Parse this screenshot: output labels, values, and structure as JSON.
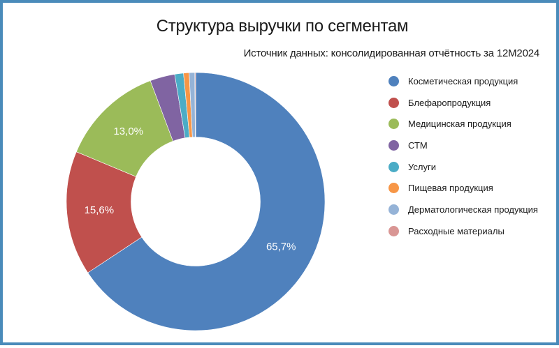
{
  "header": {
    "title": "Структура выручки по сегментам",
    "subtitle": "Источник данных: консолидированная отчётность за 12М2024"
  },
  "colors": {
    "frame": "#4A8BBA",
    "label_text": "#FFFFFF"
  },
  "chart_data": {
    "type": "pie",
    "variant": "donut",
    "title": "Структура выручки по сегментам",
    "subtitle": "Источник данных: консолидированная отчётность за 12М2024",
    "legend_position": "right",
    "unit": "%",
    "categories": [
      "Косметическая продукция",
      "Блефаропродукция",
      "Медицинская продукция",
      "СТМ",
      "Услуги",
      "Пищевая продукция",
      "Дерматологическая продукция",
      "Расходные материалы"
    ],
    "values": [
      65.7,
      15.6,
      13.0,
      3.1,
      1.1,
      0.7,
      0.7,
      0.1
    ],
    "colors": [
      "#4F81BD",
      "#C0504D",
      "#9BBB59",
      "#8064A2",
      "#4BACC6",
      "#F79646",
      "#95B3D7",
      "#D99694"
    ],
    "data_labels": [
      "65,7%",
      "15,6%",
      "13,0%",
      "",
      "",
      "",
      "",
      ""
    ],
    "start_angle": 0,
    "direction": "clockwise",
    "inner_radius_ratio": 0.5
  },
  "legend": {
    "items": [
      {
        "label": "Косметическая продукция",
        "color": "#4F81BD"
      },
      {
        "label": "Блефаропродукция",
        "color": "#C0504D"
      },
      {
        "label": "Медицинская продукция",
        "color": "#9BBB59"
      },
      {
        "label": "СТМ",
        "color": "#8064A2"
      },
      {
        "label": "Услуги",
        "color": "#4BACC6"
      },
      {
        "label": "Пищевая продукция",
        "color": "#F79646"
      },
      {
        "label": "Дерматологическая продукция",
        "color": "#95B3D7"
      },
      {
        "label": "Расходные материалы",
        "color": "#D99694"
      }
    ]
  }
}
